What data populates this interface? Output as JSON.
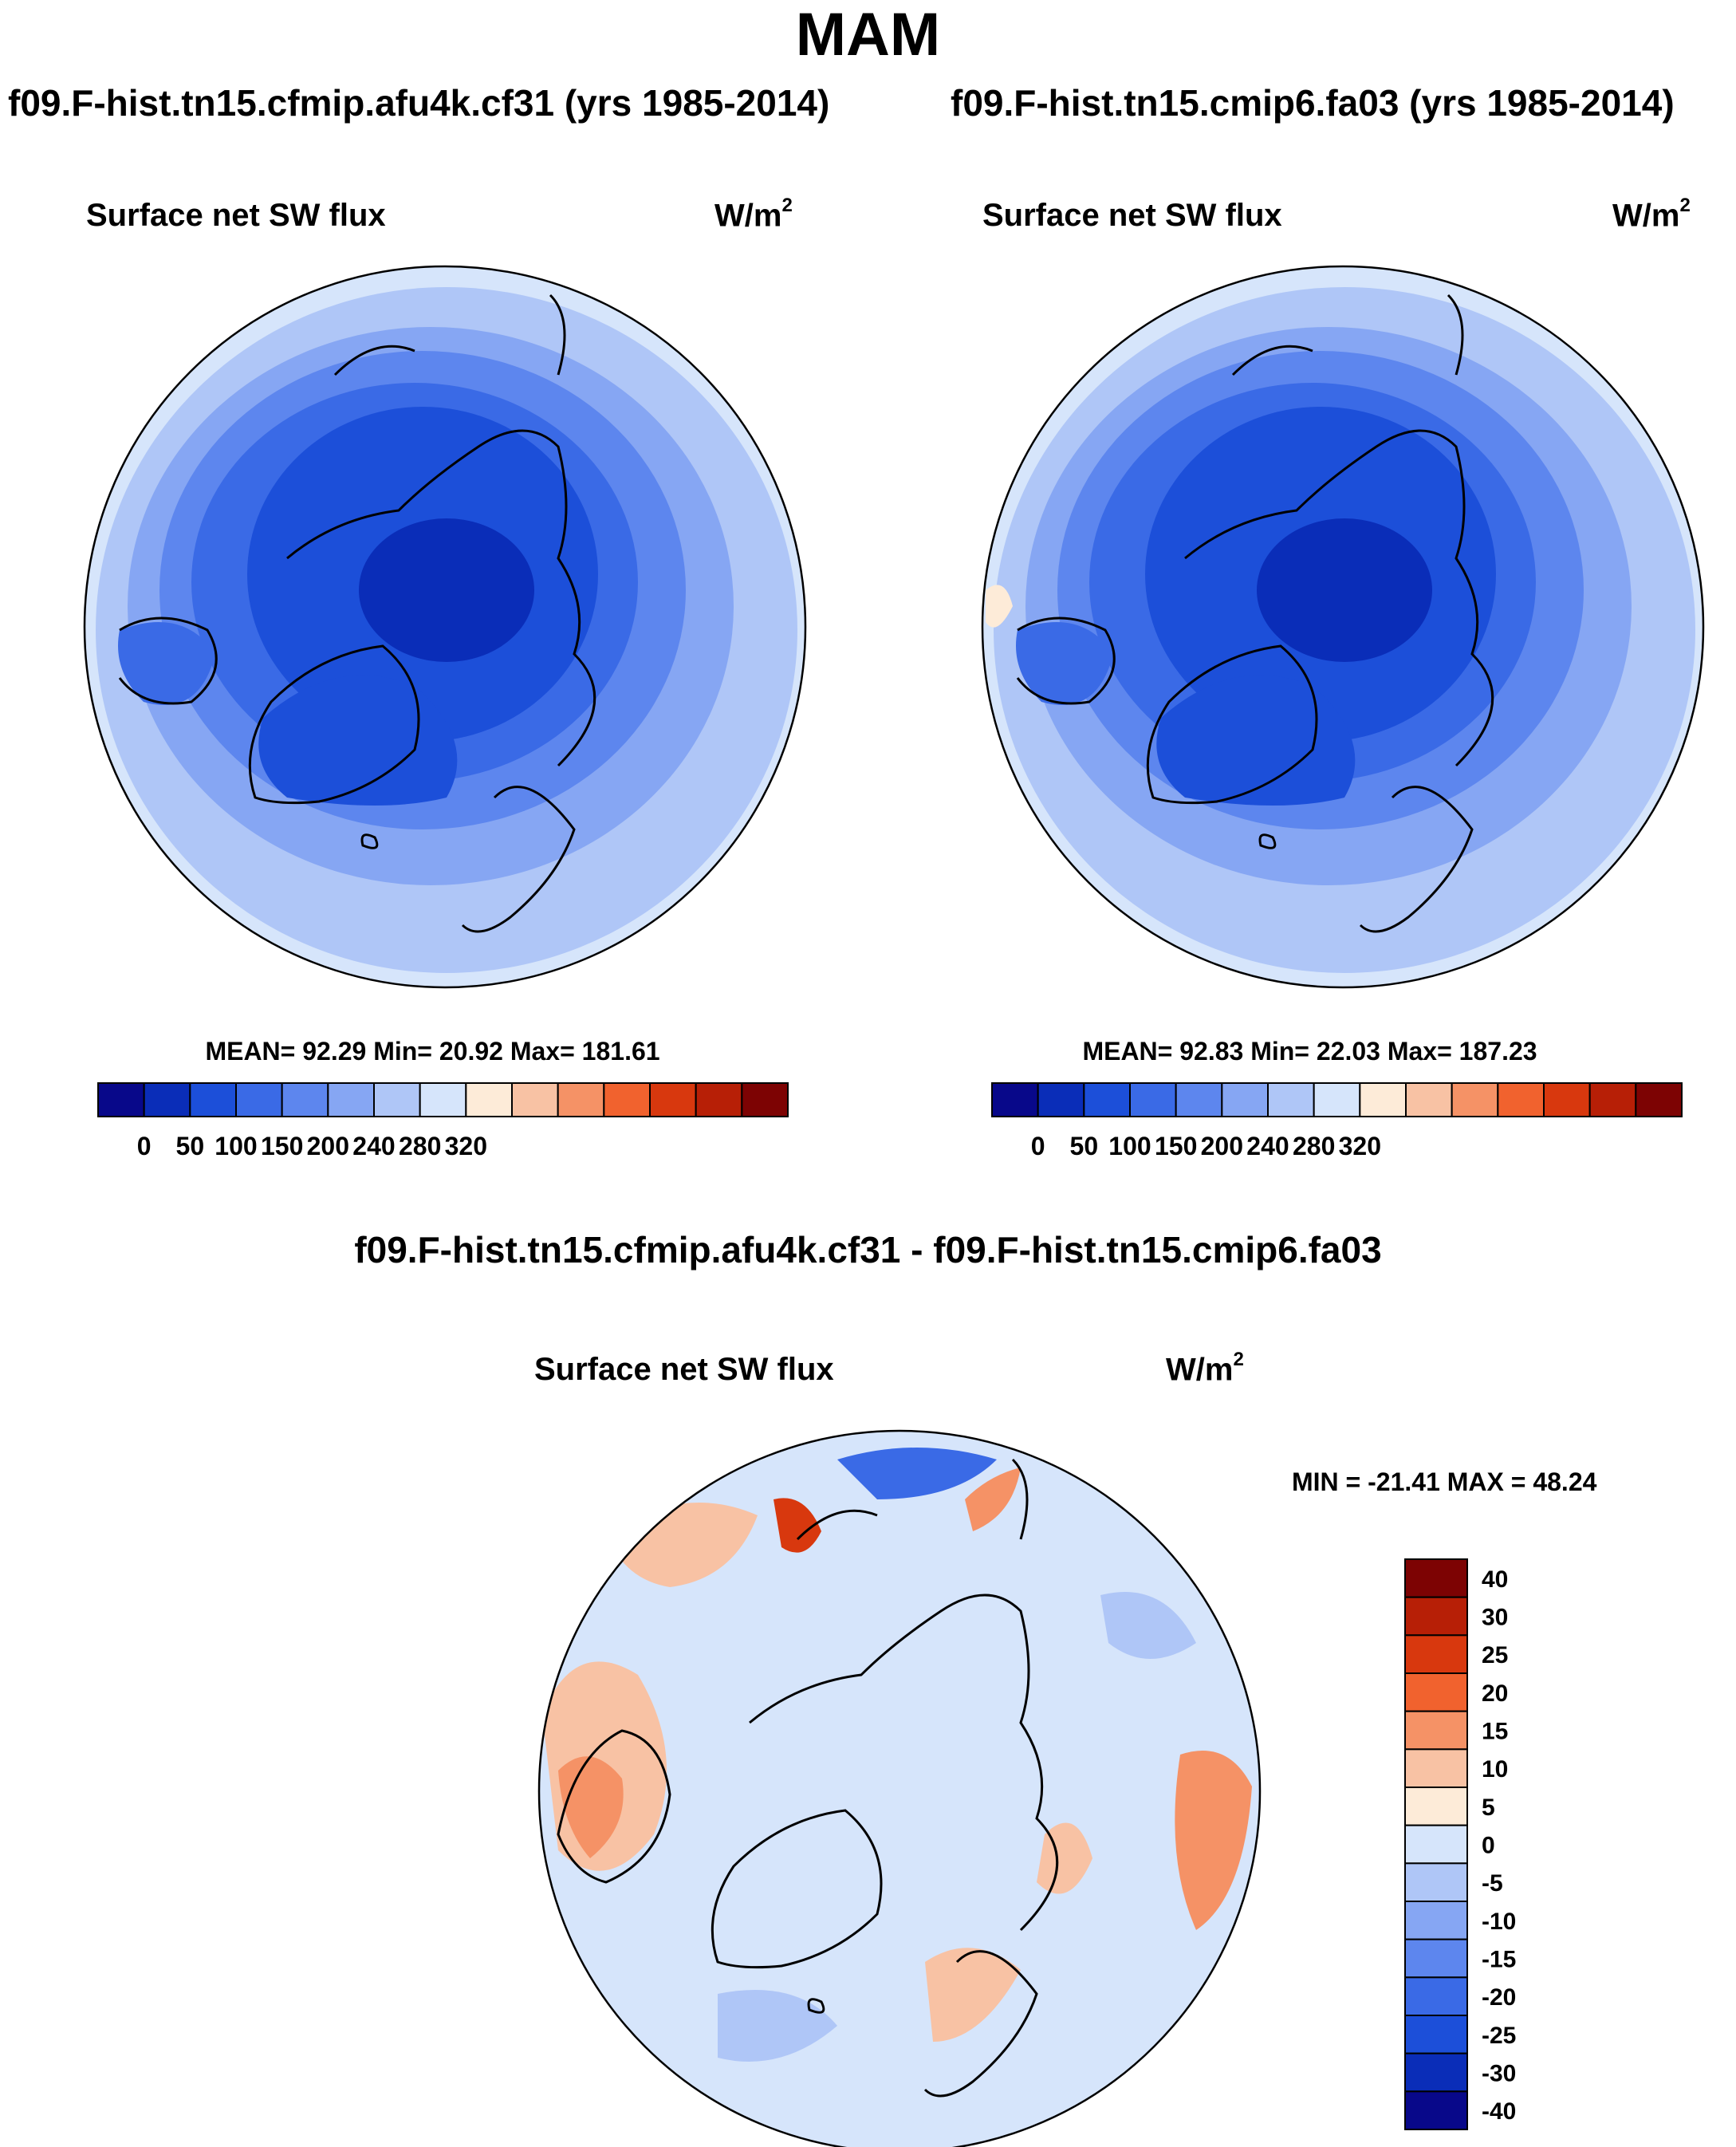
{
  "figure": {
    "season": "MAM",
    "left_run": "f09.F-hist.tn15.cfmip.afu4k.cf31 (yrs 1985-2014)",
    "right_run": "f09.F-hist.tn15.cmip6.fa03 (yrs 1985-2014)",
    "diff_title": "f09.F-hist.tn15.cfmip.afu4k.cf31 - f09.F-hist.tn15.cmip6.fa03"
  },
  "panels": {
    "left": {
      "variable": "Surface net SW flux",
      "units": "W/m",
      "units_exp": "2",
      "stats": "MEAN=  92.29  Min=  20.92  Max= 181.61"
    },
    "right": {
      "variable": "Surface net SW flux",
      "units": "W/m",
      "units_exp": "2",
      "stats": "MEAN=  92.83  Min=  22.03  Max= 187.23"
    },
    "diff": {
      "variable": "Surface net SW flux",
      "units": "W/m",
      "units_exp": "2",
      "stats": "MIN = -21.41 MAX =  48.24"
    }
  },
  "colorbars": {
    "abs": {
      "colors": [
        "#08088a",
        "#0a2db8",
        "#1c4fd9",
        "#3a6ae6",
        "#5d86ee",
        "#86a6f3",
        "#afc6f7",
        "#d6e5fb",
        "#fdebd8",
        "#f8c2a4",
        "#f59266",
        "#f1622e",
        "#d8380e",
        "#b71f06",
        "#7d0303"
      ],
      "labels": [
        "0",
        "50",
        "100",
        "150",
        "200",
        "240",
        "280",
        "320"
      ]
    },
    "diff": {
      "colors": [
        "#08088a",
        "#0a2db8",
        "#1c4fd9",
        "#3a6ae6",
        "#5d86ee",
        "#86a6f3",
        "#afc6f7",
        "#d6e5fb",
        "#fdebd8",
        "#f8c2a4",
        "#f59266",
        "#f1622e",
        "#d8380e",
        "#b71f06",
        "#7d0303"
      ],
      "labels": [
        "40",
        "30",
        "25",
        "20",
        "15",
        "10",
        "5",
        "0",
        "-5",
        "-10",
        "-15",
        "-20",
        "-25",
        "-30",
        "-40"
      ]
    }
  }
}
